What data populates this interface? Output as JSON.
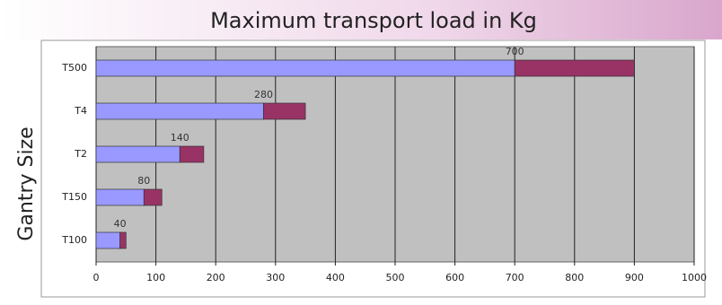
{
  "chart_data": {
    "type": "stacked_hbar",
    "title": "Maximum transport load in Kg",
    "ylabel": "Gantry Size",
    "categories": [
      "T500",
      "T4",
      "T2",
      "T150",
      "T100"
    ],
    "series": [
      {
        "color": "#9999ff",
        "values": [
          700,
          280,
          140,
          80,
          40
        ],
        "value_labels": [
          "700",
          "280",
          "140",
          "80",
          "40"
        ]
      },
      {
        "color": "#993366",
        "values": [
          200,
          70,
          40,
          30,
          10
        ]
      }
    ],
    "xlim": [
      0,
      1000
    ],
    "xticks": [
      0,
      100,
      200,
      300,
      400,
      500,
      600,
      700,
      800,
      900,
      1000
    ],
    "grid": true
  }
}
